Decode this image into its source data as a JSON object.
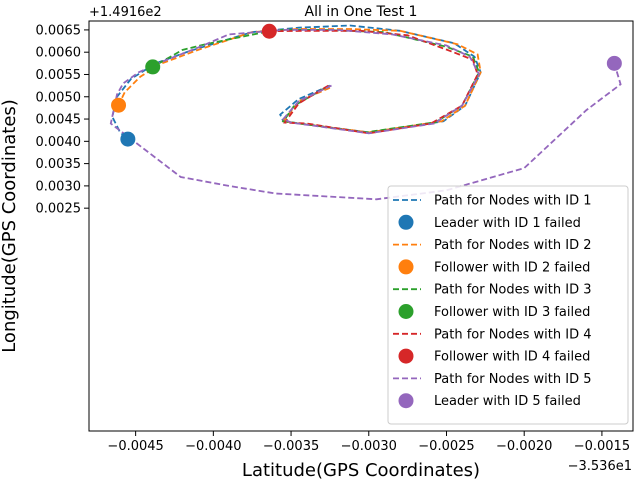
{
  "chart_data": {
    "type": "line",
    "title": "All in One Test 1",
    "xlabel": "Latitude(GPS Coordinates)",
    "ylabel": "Longitude(GPS Coordinates)",
    "x_offset_label": "−3.536e1",
    "y_offset_label": "+1.4916e2",
    "xlim": [
      -0.0048,
      -0.0013
    ],
    "ylim": [
      -0.0025,
      0.0067
    ],
    "xticks": [
      -0.0045,
      -0.004,
      -0.0035,
      -0.003,
      -0.0025,
      -0.002,
      -0.0015
    ],
    "xtick_labels": [
      "−0.0045",
      "−0.0040",
      "−0.0035",
      "−0.0030",
      "−0.0025",
      "−0.0020",
      "−0.0015"
    ],
    "yticks": [
      0.0025,
      0.003,
      0.0035,
      0.004,
      0.0045,
      0.005,
      0.0055,
      0.006,
      0.0065
    ],
    "ytick_labels": [
      "0.0025",
      "0.0030",
      "0.0035",
      "0.0040",
      "0.0045",
      "0.0050",
      "0.0055",
      "0.0060",
      "0.0065"
    ],
    "grid": false,
    "legend_position": "lower-right",
    "series": [
      {
        "name": "Path for Nodes with ID 1",
        "color": "#1f77b4",
        "style": "dashed",
        "x": [
          -0.00325,
          -0.00345,
          -0.00357,
          -0.00355,
          -0.003,
          -0.00252,
          -0.00238,
          -0.00228,
          -0.00232,
          -0.00245,
          -0.0028,
          -0.00312,
          -0.00345,
          -0.00375,
          -0.00415,
          -0.00437,
          -0.00453,
          -0.00462,
          -0.00465,
          -0.0046,
          -0.00455
        ],
        "y": [
          0.00525,
          0.00495,
          0.0046,
          0.00445,
          0.0042,
          0.00445,
          0.0048,
          0.00555,
          0.0059,
          0.0062,
          0.00648,
          0.0066,
          0.00655,
          0.00645,
          0.00603,
          0.00575,
          0.0054,
          0.005,
          0.00455,
          0.0042,
          0.00405
        ]
      },
      {
        "name": "Leader with ID 1 failed",
        "color": "#1f77b4",
        "marker": true,
        "x": [
          -0.00455
        ],
        "y": [
          0.00405
        ]
      },
      {
        "name": "Path for Nodes with ID 2",
        "color": "#ff7f0e",
        "style": "dashed",
        "x": [
          -0.00325,
          -0.00345,
          -0.00355,
          -0.00345,
          -0.003,
          -0.00253,
          -0.00238,
          -0.00228,
          -0.0023,
          -0.00243,
          -0.0028,
          -0.00312,
          -0.00345,
          -0.00375,
          -0.0041,
          -0.00433,
          -0.00447,
          -0.00457,
          -0.00461
        ],
        "y": [
          0.0052,
          0.0049,
          0.00445,
          0.0044,
          0.0042,
          0.00445,
          0.0048,
          0.00555,
          0.00595,
          0.00618,
          0.00648,
          0.00652,
          0.00652,
          0.00645,
          0.00605,
          0.00575,
          0.00545,
          0.0051,
          0.00481
        ]
      },
      {
        "name": "Follower with ID 2 failed",
        "color": "#ff7f0e",
        "marker": true,
        "x": [
          -0.00461
        ],
        "y": [
          0.00481
        ]
      },
      {
        "name": "Path for Nodes with ID 3",
        "color": "#2ca02c",
        "style": "dashed",
        "x": [
          -0.00328,
          -0.00348,
          -0.00355,
          -0.0034,
          -0.00302,
          -0.00257,
          -0.0024,
          -0.00229,
          -0.00233,
          -0.0025,
          -0.0029,
          -0.0033,
          -0.0036,
          -0.00405,
          -0.0042,
          -0.00439
        ],
        "y": [
          0.0052,
          0.0048,
          0.00445,
          0.00438,
          0.0042,
          0.00443,
          0.0048,
          0.00555,
          0.0059,
          0.00612,
          0.00645,
          0.0065,
          0.0065,
          0.00618,
          0.00605,
          0.00567
        ]
      },
      {
        "name": "Follower with ID 3 failed",
        "color": "#2ca02c",
        "marker": true,
        "x": [
          -0.00439
        ],
        "y": [
          0.00567
        ]
      },
      {
        "name": "Path for Nodes with ID 4",
        "color": "#d62728",
        "style": "dashed",
        "x": [
          -0.00326,
          -0.00345,
          -0.00354,
          -0.0034,
          -0.003,
          -0.0026,
          -0.0024,
          -0.0023,
          -0.00233,
          -0.00247,
          -0.00275,
          -0.00305,
          -0.00337,
          -0.00364
        ],
        "y": [
          0.00525,
          0.00485,
          0.00442,
          0.0044,
          0.00418,
          0.0044,
          0.0048,
          0.0055,
          0.00583,
          0.00602,
          0.00638,
          0.00648,
          0.00648,
          0.00647
        ]
      },
      {
        "name": "Follower with ID 4 failed",
        "color": "#d62728",
        "marker": true,
        "x": [
          -0.00364
        ],
        "y": [
          0.00647
        ]
      },
      {
        "name": "Path for Nodes with ID 5",
        "color": "#9467bd",
        "style": "dashed",
        "x": [
          -0.00324,
          -0.00345,
          -0.00355,
          -0.0035,
          -0.003,
          -0.00258,
          -0.0024,
          -0.00229,
          -0.00235,
          -0.0025,
          -0.00285,
          -0.0032,
          -0.00355,
          -0.0039,
          -0.0041,
          -0.00432,
          -0.00448,
          -0.00458,
          -0.00462,
          -0.00466,
          -0.00421,
          -0.0039,
          -0.0036,
          -0.00295,
          -0.0025,
          -0.002,
          -0.0016,
          -0.00138,
          -0.00142
        ],
        "y": [
          0.00525,
          0.0049,
          0.0045,
          0.00442,
          0.00418,
          0.0044,
          0.0048,
          0.0055,
          0.0059,
          0.00615,
          0.0064,
          0.0065,
          0.0065,
          0.0064,
          0.0061,
          0.0058,
          0.00555,
          0.0053,
          0.00505,
          0.0044,
          0.0032,
          0.003,
          0.00283,
          0.0027,
          0.0029,
          0.0034,
          0.0047,
          0.00528,
          0.00575
        ]
      },
      {
        "name": "Leader with ID 5 failed",
        "color": "#9467bd",
        "marker": true,
        "x": [
          -0.00142
        ],
        "y": [
          0.00575
        ]
      }
    ]
  }
}
